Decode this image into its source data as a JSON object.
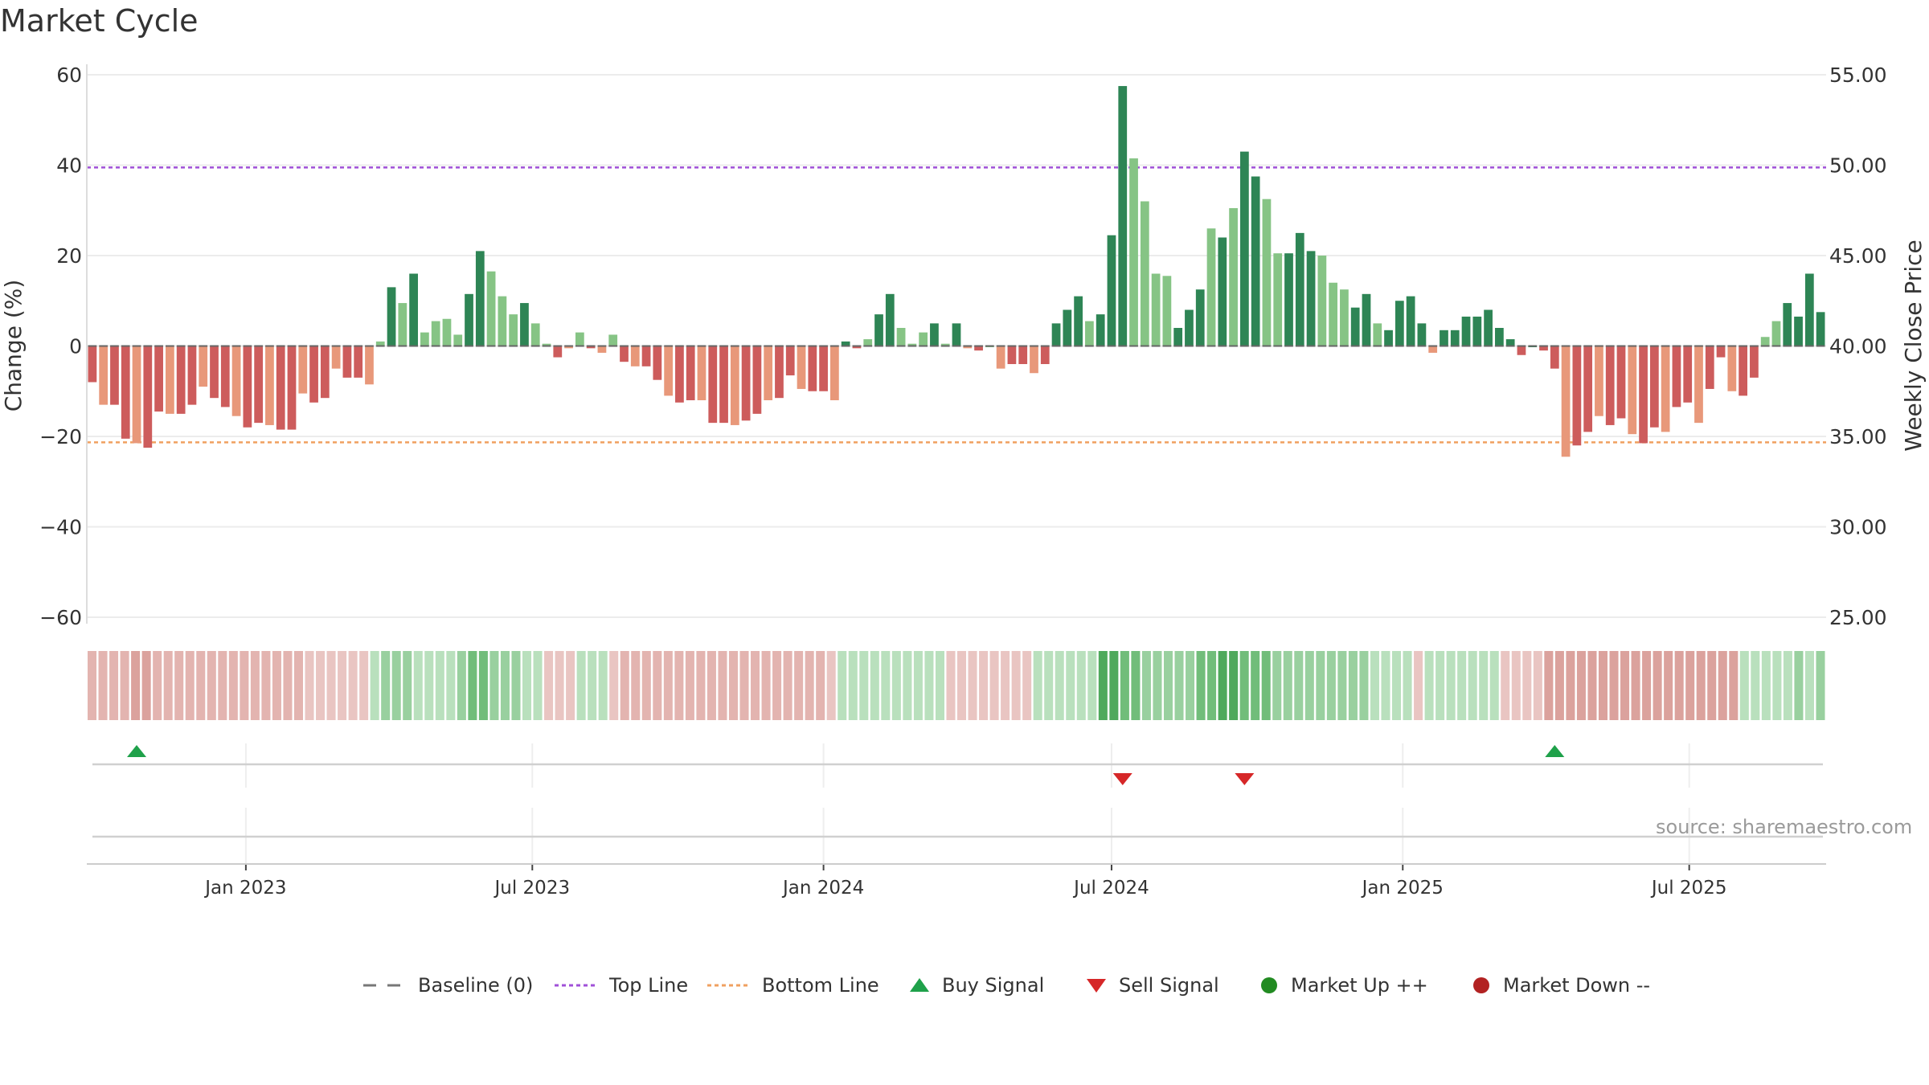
{
  "title": "Market Cycle",
  "source": "source: sharemaestro.com",
  "legend": {
    "baseline": "Baseline (0)",
    "top_line": "Top Line",
    "bottom_line": "Bottom Line",
    "buy": "Buy Signal",
    "sell": "Sell Signal",
    "up": "Market Up ++",
    "down": "Market Down --"
  },
  "colors": {
    "up_strong": "#2e8555",
    "up_light": "#86c485",
    "down_strong": "#cd5c5c",
    "down_light": "#e8987a",
    "top_line": "#a050d8",
    "bottom_line": "#f0a060",
    "buy": "#1fa14a",
    "sell": "#d62728",
    "market_up": "#228b22",
    "market_down": "#b22222"
  },
  "chart_data": {
    "type": "bar",
    "ylabel": "Change (%)",
    "y2label": "Weekly Close Price",
    "ylim": [
      -60,
      60
    ],
    "y2lim": [
      25,
      55
    ],
    "yticks": [
      "60",
      "40",
      "20",
      "0",
      "−20",
      "−40",
      "−60"
    ],
    "y2ticks": [
      "55.00",
      "50.00",
      "45.00",
      "40.00",
      "35.00",
      "30.00",
      "25.00"
    ],
    "xticks": [
      "Jan 2023",
      "Jul 2023",
      "Jan 2024",
      "Jul 2024",
      "Jan 2025",
      "Jul 2025"
    ],
    "top_line": 39.5,
    "bottom_line": -21.3,
    "start_week": "2022-09-26",
    "series": [
      {
        "values": [
          -8,
          -13,
          -13,
          -20.5,
          -21.5,
          -22.5,
          -14.5,
          -15,
          -15,
          -13,
          -9,
          -11.5,
          -13.5,
          -15.5,
          -18,
          -17,
          -17.5,
          -18.5,
          -18.5,
          -10.5,
          -12.5,
          -11.5,
          -5,
          -7,
          -7,
          -8.5,
          1,
          13,
          9.5,
          16,
          3,
          5.5,
          6,
          2.5,
          11.5,
          21,
          16.5,
          11,
          7,
          9.5,
          5,
          0.5,
          -2.5,
          -0.5,
          3,
          -0.5,
          -1.5,
          2.5,
          -3.5,
          -4.5,
          -4.5,
          -7.5,
          -11,
          -12.5,
          -12,
          -12,
          -17,
          -17,
          -17.5,
          -16.5,
          -15,
          -12,
          -11.5,
          -6.5,
          -9.5,
          -10,
          -10,
          -12,
          1,
          -0.5,
          1.5,
          7,
          11.5,
          4,
          0.5,
          3,
          5,
          0.5,
          5,
          -0.5,
          -1,
          0,
          -5,
          -4,
          -4,
          -6,
          -4,
          5,
          8,
          11,
          5.5,
          7,
          24.5,
          57.5,
          41.5,
          32,
          16,
          15.5,
          4,
          8,
          12.5,
          26,
          24,
          30.5,
          43,
          37.5,
          32.5,
          20.5,
          20.5,
          25,
          21,
          20,
          14,
          12.5,
          8.5,
          11.5,
          5,
          3.5,
          10,
          11,
          5,
          -1.5,
          3.5,
          3.5,
          6.5,
          6.5,
          8,
          4,
          1.5,
          -2,
          0,
          -1,
          -5,
          -24.5,
          -22,
          -19,
          -15.5,
          -17.5,
          -16,
          -19.5,
          -21.5,
          -18,
          -19,
          -13.5,
          -12.5,
          -17,
          -9.5,
          -2.5,
          -10,
          -11,
          -7,
          2,
          5.5,
          9.5,
          6.5,
          16,
          7.5
        ],
        "strong_up_weeks": [
          27,
          29,
          34,
          35,
          39,
          46,
          68,
          71,
          72,
          76,
          78,
          87,
          88,
          89,
          91,
          92,
          93,
          98,
          99,
          100,
          102,
          104,
          105,
          108,
          109,
          110,
          114,
          115,
          117,
          118,
          119,
          120,
          121,
          122,
          123,
          124,
          125,
          126,
          127,
          128,
          129,
          130,
          131,
          132,
          153,
          154,
          155,
          156
        ],
        "buy_signal_weeks": [
          4,
          132
        ],
        "sell_signal_weeks": [
          93,
          104
        ],
        "market_up_weeks": [],
        "market_down_weeks": []
      }
    ],
    "strip_levels": [
      -2,
      -2,
      -2,
      -2,
      -3,
      -3,
      -2,
      -2,
      -2,
      -2,
      -2,
      -2,
      -2,
      -2,
      -2,
      -2,
      -2,
      -2,
      -2,
      -2,
      -1,
      -1,
      -1,
      -1,
      -1,
      -1,
      1,
      2,
      2,
      2,
      1,
      1,
      1,
      1,
      2,
      3,
      3,
      2,
      2,
      2,
      1,
      1,
      -1,
      -1,
      -1,
      1,
      1,
      1,
      -1,
      -2,
      -2,
      -2,
      -2,
      -2,
      -2,
      -2,
      -2,
      -2,
      -2,
      -2,
      -2,
      -2,
      -2,
      -2,
      -2,
      -2,
      -2,
      -2,
      -1,
      1,
      1,
      1,
      1,
      1,
      1,
      1,
      1,
      1,
      1,
      -1,
      -1,
      -1,
      -1,
      -1,
      -1,
      -1,
      -1,
      1,
      1,
      1,
      1,
      1,
      1,
      4,
      4,
      3,
      3,
      2,
      2,
      2,
      2,
      2,
      3,
      3,
      4,
      4,
      3,
      3,
      3,
      2,
      2,
      2,
      2,
      2,
      2,
      2,
      2,
      2,
      1,
      1,
      1,
      1,
      -1,
      1,
      1,
      1,
      1,
      1,
      1,
      1,
      -1,
      -1,
      -1,
      -1,
      -3,
      -3,
      -3,
      -3,
      -3,
      -3,
      -3,
      -3,
      -3,
      -3,
      -3,
      -3,
      -3,
      -3,
      -3,
      -3,
      -3,
      -3,
      1,
      1,
      1,
      1,
      1,
      2,
      1,
      2
    ]
  }
}
